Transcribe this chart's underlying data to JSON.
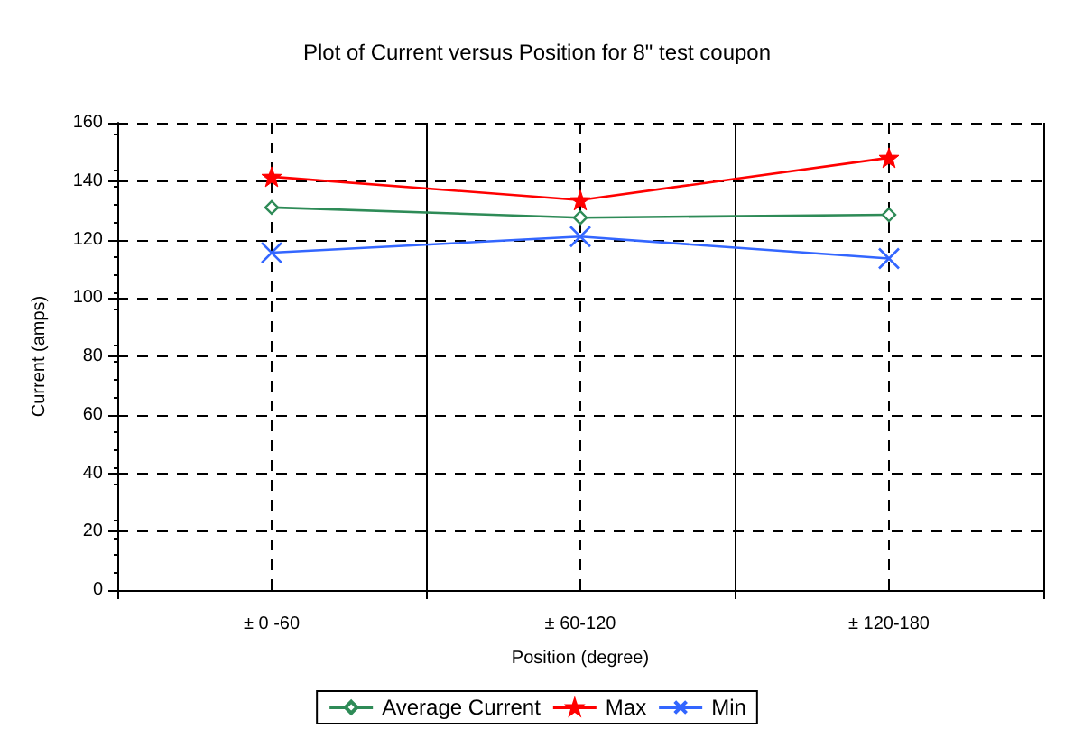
{
  "chart_data": {
    "type": "line",
    "title": "Plot of Current versus Position for 8\" test coupon",
    "xlabel": "Position (degree)",
    "ylabel": "Current (amps)",
    "categories": [
      "± 0 -60",
      "± 60-120",
      "± 120-180"
    ],
    "series": [
      {
        "name": "Average Current",
        "color": "#2e8b57",
        "marker": "diamond",
        "values": [
          131,
          127.5,
          128.5
        ]
      },
      {
        "name": "Max",
        "color": "#ff0000",
        "marker": "star",
        "values": [
          141.5,
          133.5,
          148
        ]
      },
      {
        "name": "Min",
        "color": "#3366ff",
        "marker": "cross",
        "values": [
          115.5,
          121,
          113.5
        ]
      }
    ],
    "ylim": [
      0,
      160
    ],
    "yticks": [
      0,
      20,
      40,
      60,
      80,
      100,
      120,
      140,
      160
    ],
    "grid": true,
    "legend": "bottom",
    "line_style": "solid"
  }
}
